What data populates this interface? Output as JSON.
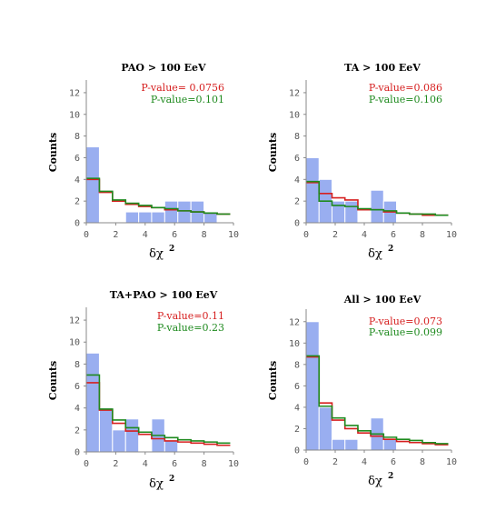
{
  "colors": {
    "bar": "#99aef0",
    "bar_edge": "#ffffff",
    "red": "#d62020",
    "green": "#1e8a1e"
  },
  "chart_data": [
    {
      "type": "bar",
      "title": "PAO > 100 EeV",
      "ylabel": "Counts",
      "xlabel": "δχ",
      "xlabel_sup": "2",
      "xlim": [
        0,
        10
      ],
      "ylim": [
        0,
        13
      ],
      "xticks": [
        "0",
        "2",
        "4",
        "6",
        "8",
        "10"
      ],
      "yticks": [
        "0",
        "2",
        "4",
        "6",
        "8",
        "10",
        "12"
      ],
      "bin_edges": [
        0,
        0.89,
        1.78,
        2.67,
        3.56,
        4.44,
        5.33,
        6.22,
        7.11,
        8.0,
        8.89,
        9.78
      ],
      "counts": [
        7,
        0,
        0,
        1,
        1,
        1,
        2,
        2,
        2,
        1,
        0
      ],
      "series": [
        {
          "name": "P-value= 0.0756",
          "color": "red",
          "values": [
            4.0,
            2.8,
            2.0,
            1.7,
            1.5,
            1.4,
            1.2,
            1.1,
            1.0,
            0.9,
            0.8
          ]
        },
        {
          "name": "P-value=0.101",
          "color": "green",
          "values": [
            4.1,
            2.9,
            2.1,
            1.8,
            1.6,
            1.4,
            1.3,
            1.1,
            1.0,
            0.9,
            0.8
          ]
        }
      ]
    },
    {
      "type": "bar",
      "title": "TA > 100 EeV",
      "ylabel": "Counts",
      "xlabel": "δχ",
      "xlabel_sup": "2",
      "xlim": [
        0,
        10
      ],
      "ylim": [
        0,
        13
      ],
      "xticks": [
        "0",
        "2",
        "4",
        "6",
        "8",
        "10"
      ],
      "yticks": [
        "0",
        "2",
        "4",
        "6",
        "8",
        "10",
        "12"
      ],
      "bin_edges": [
        0,
        0.89,
        1.78,
        2.67,
        3.56,
        4.44,
        5.33,
        6.22,
        7.11,
        8.0,
        8.89,
        9.78
      ],
      "counts": [
        6,
        4,
        2,
        2,
        0,
        3,
        2,
        0,
        0,
        0,
        0
      ],
      "series": [
        {
          "name": "P-value=0.086",
          "color": "red",
          "values": [
            3.7,
            2.7,
            2.3,
            2.1,
            1.2,
            1.2,
            1.0,
            0.9,
            0.8,
            0.7,
            0.7
          ]
        },
        {
          "name": "P-value=0.106",
          "color": "green",
          "values": [
            3.8,
            2.0,
            1.6,
            1.5,
            1.3,
            1.2,
            1.1,
            0.9,
            0.8,
            0.8,
            0.7
          ]
        }
      ]
    },
    {
      "type": "bar",
      "title": "TA+PAO > 100 EeV",
      "ylabel": "Counts",
      "xlabel": "δχ",
      "xlabel_sup": "2",
      "xlim": [
        0,
        10
      ],
      "ylim": [
        0,
        13
      ],
      "xticks": [
        "0",
        "2",
        "4",
        "6",
        "8",
        "10"
      ],
      "yticks": [
        "0",
        "2",
        "4",
        "6",
        "8",
        "10",
        "12"
      ],
      "bin_edges": [
        0,
        0.89,
        1.78,
        2.67,
        3.56,
        4.44,
        5.33,
        6.22,
        7.11,
        8.0,
        8.89,
        9.78
      ],
      "counts": [
        9,
        4,
        2,
        3,
        0,
        3,
        1,
        0,
        0,
        0,
        0
      ],
      "series": [
        {
          "name": "P-value=0.11",
          "color": "red",
          "values": [
            6.3,
            3.8,
            2.6,
            1.9,
            1.6,
            1.2,
            1.0,
            0.9,
            0.8,
            0.7,
            0.6
          ]
        },
        {
          "name": "P-value=0.23",
          "color": "green",
          "values": [
            7.0,
            3.9,
            2.9,
            2.2,
            1.8,
            1.5,
            1.3,
            1.1,
            1.0,
            0.9,
            0.8
          ]
        }
      ]
    },
    {
      "type": "bar",
      "title": "All > 100 EeV",
      "ylabel": "Counts",
      "xlabel": "δχ",
      "xlabel_sup": "2",
      "xlim": [
        0,
        10
      ],
      "ylim": [
        0,
        13
      ],
      "xticks": [
        "0",
        "2",
        "4",
        "6",
        "8",
        "10"
      ],
      "yticks": [
        "0",
        "2",
        "4",
        "6",
        "8",
        "10",
        "12"
      ],
      "bin_edges": [
        0,
        0.89,
        1.78,
        2.67,
        3.56,
        4.44,
        5.33,
        6.22,
        7.11,
        8.0,
        8.89,
        9.78
      ],
      "counts": [
        12,
        4,
        1,
        1,
        0,
        3,
        1,
        0,
        0,
        0,
        0
      ],
      "series": [
        {
          "name": "P-value=0.073",
          "color": "red",
          "values": [
            8.7,
            4.4,
            2.8,
            2.0,
            1.6,
            1.3,
            1.0,
            0.8,
            0.7,
            0.6,
            0.5
          ]
        },
        {
          "name": "P-value=0.099",
          "color": "green",
          "values": [
            8.8,
            4.1,
            3.0,
            2.3,
            1.8,
            1.5,
            1.2,
            1.0,
            0.9,
            0.7,
            0.6
          ]
        }
      ]
    }
  ]
}
